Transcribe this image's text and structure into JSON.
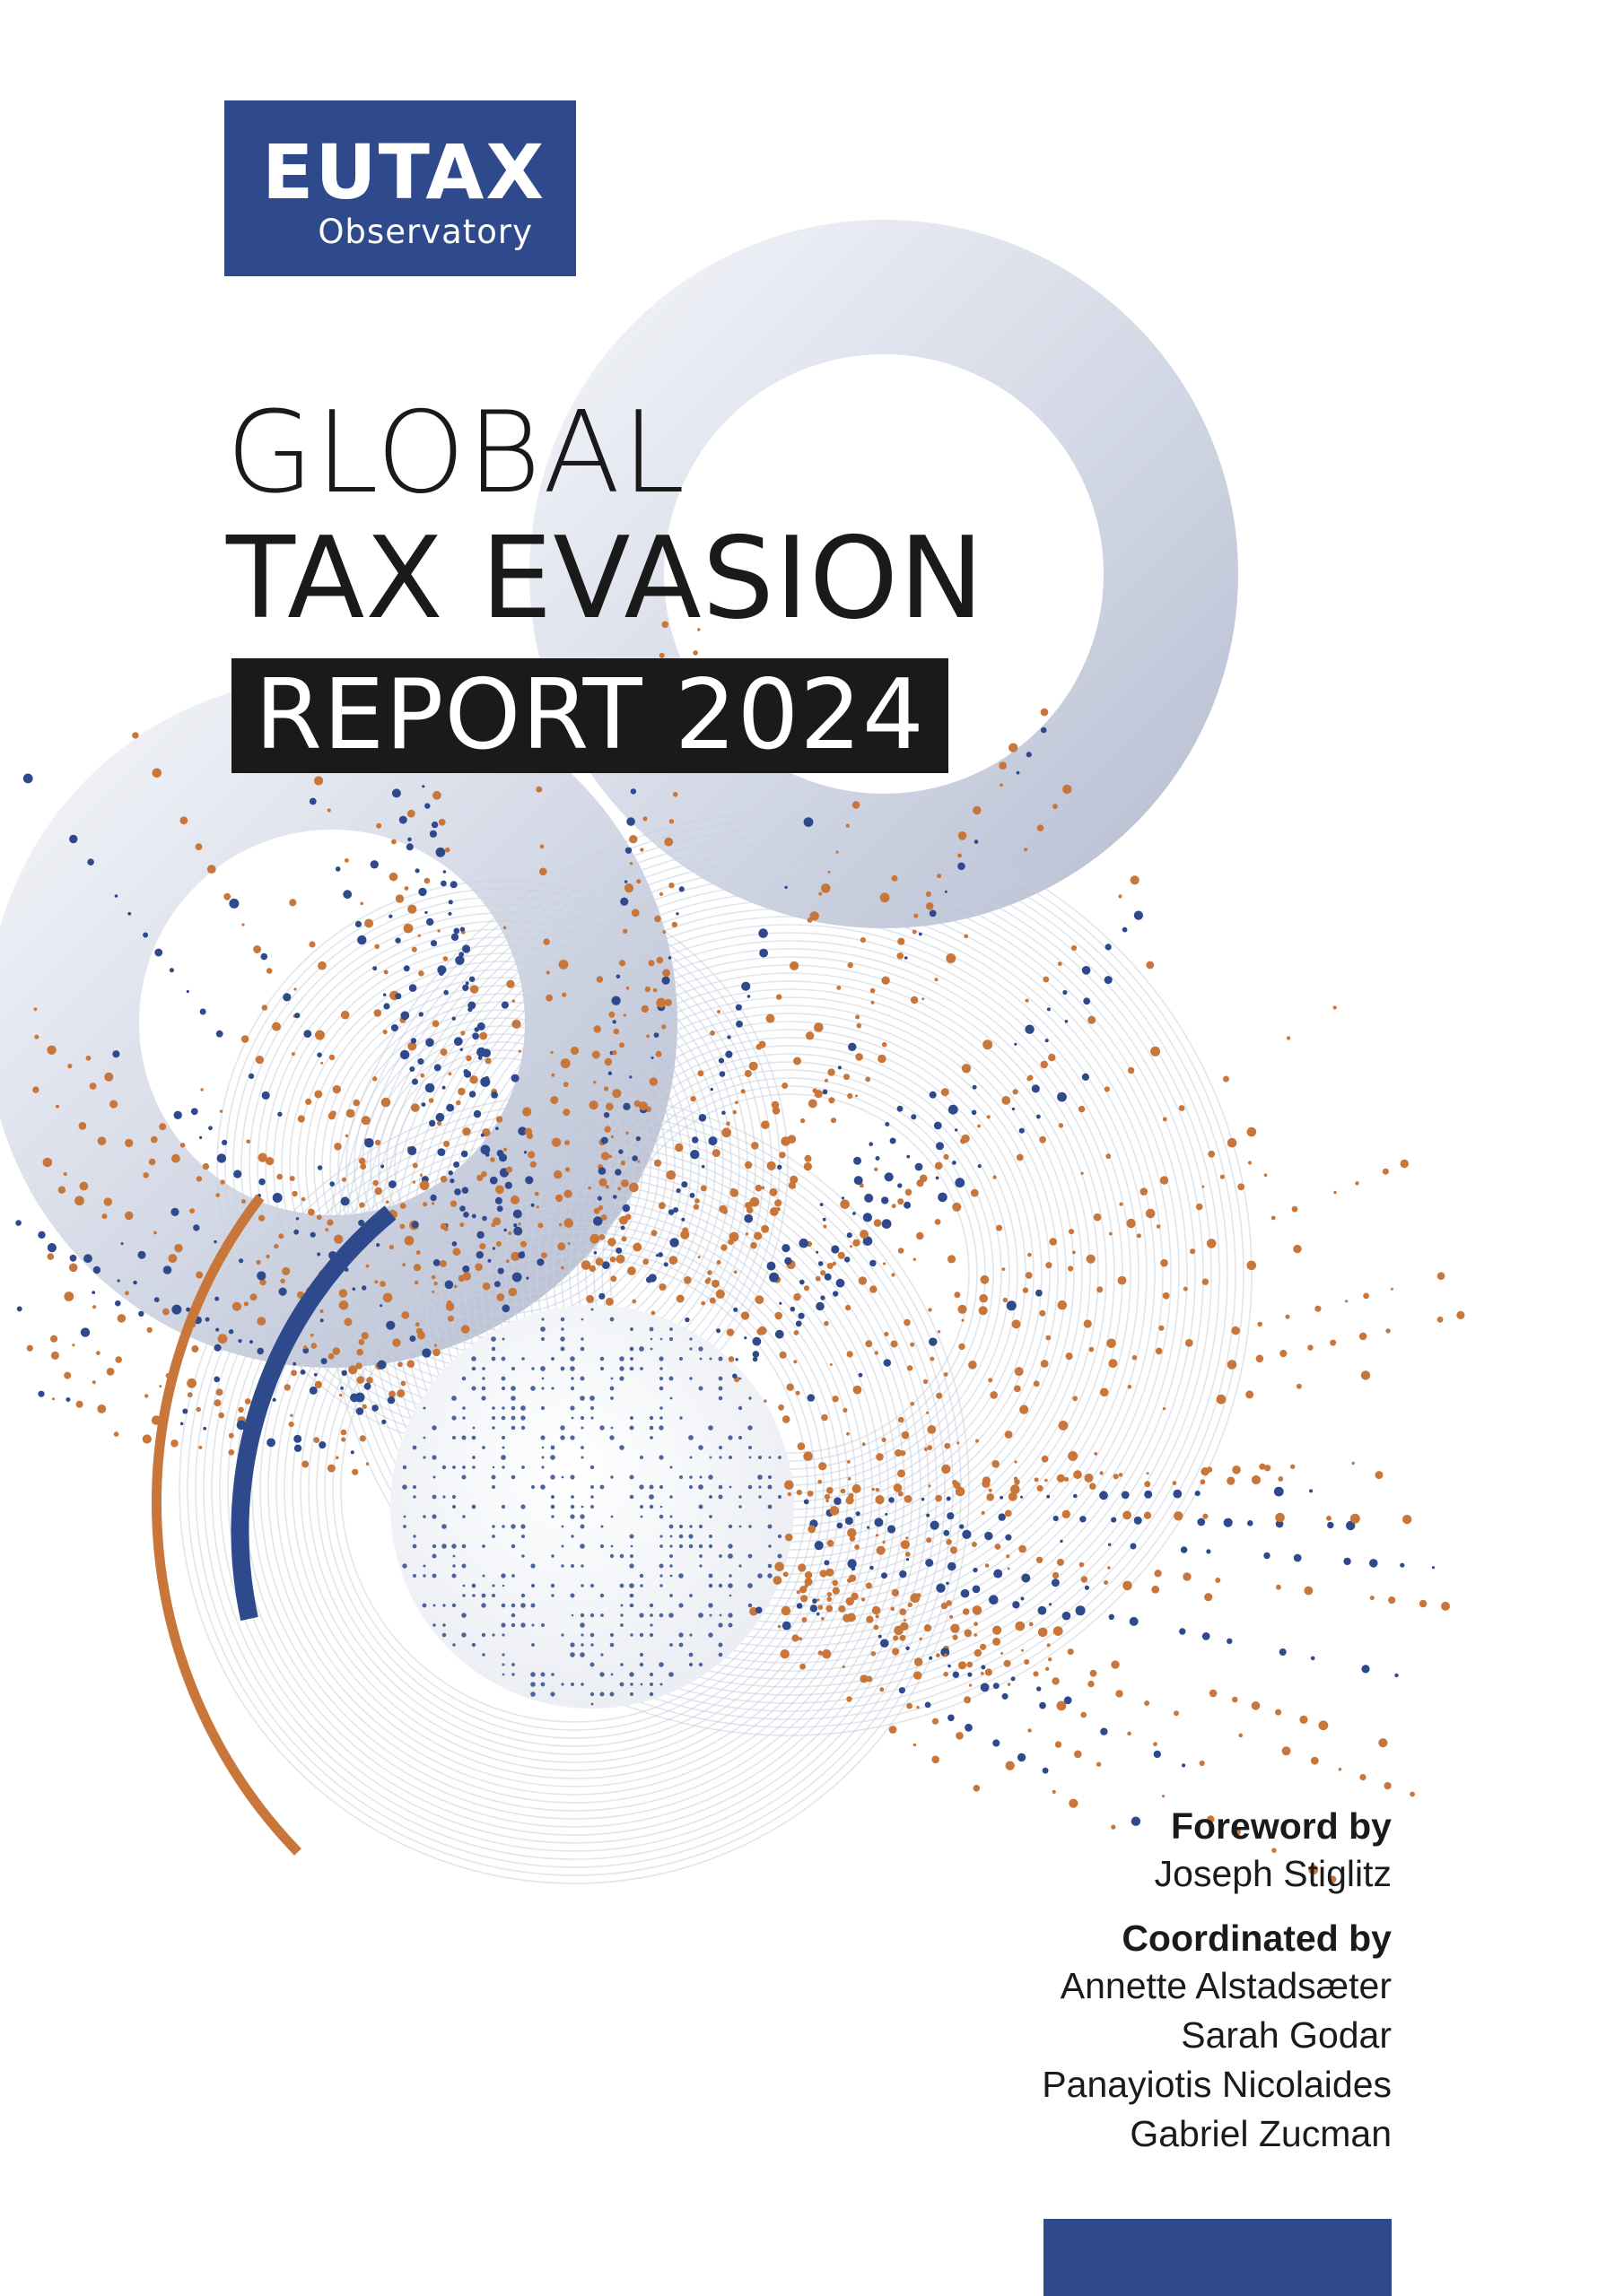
{
  "logo": {
    "word": "EUTAX",
    "sub": "Observatory"
  },
  "title": {
    "line1": "GLOBAL",
    "line2": "TAX EVASION",
    "line3": "REPORT 2024"
  },
  "credits": {
    "foreword_heading": "Foreword by",
    "foreword_name": "Joseph Stiglitz",
    "coordinated_heading": "Coordinated by",
    "coordinators": [
      "Annette Alstadsæter",
      "Sarah Godar",
      "Panayiotis Nicolaides",
      "Gabriel Zucman"
    ]
  },
  "colors": {
    "brand_blue": "#2e4a8c",
    "accent_orange": "#c8763a",
    "title_black": "#1a1a1a",
    "ring_grey": "#c9cfdc"
  },
  "icons": [
    "globe-illustration",
    "dot-burst-graphic",
    "ring-graphic"
  ]
}
